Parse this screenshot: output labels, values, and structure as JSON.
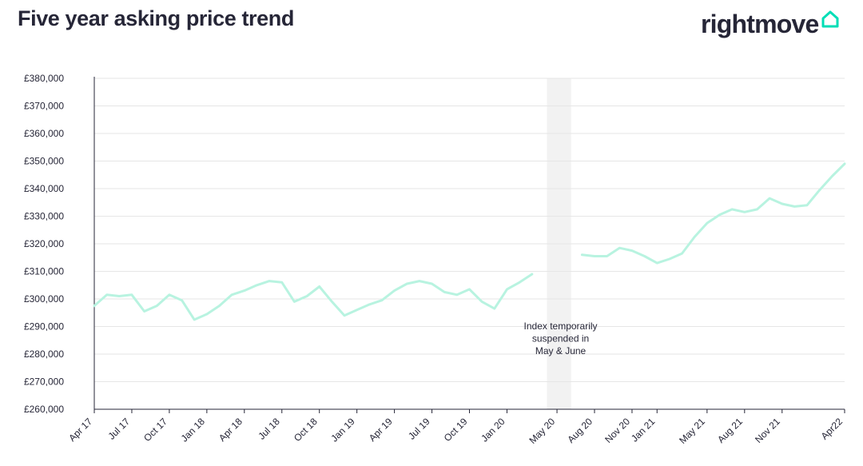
{
  "header": {
    "title": "Five year asking price trend",
    "brand": "rightmove"
  },
  "colors": {
    "line": "#b8f3e0",
    "brand_accent": "#00deb6",
    "gap_band": "#f2f2f2",
    "grid": "#e6e6e6",
    "text": "#262637"
  },
  "icons": {
    "brand": "house-outline-icon"
  },
  "chart_data": {
    "type": "line",
    "title": "Five year asking price trend",
    "xlabel": "",
    "ylabel": "",
    "ylim": [
      260000,
      380000
    ],
    "yticks": [
      260000,
      270000,
      280000,
      290000,
      300000,
      310000,
      320000,
      330000,
      340000,
      350000,
      360000,
      370000,
      380000
    ],
    "ytick_labels": [
      "£260,000",
      "£270,000",
      "£280,000",
      "£290,000",
      "£300,000",
      "£310,000",
      "£320,000",
      "£330,000",
      "£340,000",
      "£350,000",
      "£360,000",
      "£370,000",
      "£380,000"
    ],
    "x_categories": [
      "Apr 17",
      "May 17",
      "Jun 17",
      "Jul 17",
      "Aug 17",
      "Sep 17",
      "Oct 17",
      "Nov 17",
      "Dec 17",
      "Jan 18",
      "Feb 18",
      "Mar 18",
      "Apr 18",
      "May 18",
      "Jun 18",
      "Jul 18",
      "Aug 18",
      "Sep 18",
      "Oct 18",
      "Nov 18",
      "Dec 18",
      "Jan 19",
      "Feb 19",
      "Mar 19",
      "Apr 19",
      "May 19",
      "Jun 19",
      "Jul 19",
      "Aug 19",
      "Sep 19",
      "Oct 19",
      "Nov 19",
      "Dec 19",
      "Jan 20",
      "Feb 20",
      "Mar 20",
      "Apr 20",
      "May 20",
      "Jun 20",
      "Jul 20",
      "Aug 20",
      "Sep 20",
      "Oct 20",
      "Nov 20",
      "Dec 20",
      "Jan 21",
      "Feb 21",
      "Mar 21",
      "Apr 21",
      "May 21",
      "Jun 21",
      "Jul 21",
      "Aug 21",
      "Sep 21",
      "Oct 21",
      "Nov 21",
      "Dec 21",
      "Jan 22",
      "Feb 22",
      "Mar 22",
      "Apr 22"
    ],
    "x_tick_labels": [
      "Apr 17",
      "Jul 17",
      "Oct 17",
      "Jan 18",
      "Apr 18",
      "Jul 18",
      "Oct 18",
      "Jan 19",
      "Apr 19",
      "Jul 19",
      "Oct 19",
      "Jan 20",
      "May 20",
      "Aug 20",
      "Nov 20",
      "Jan 21",
      "May 21",
      "Aug 21",
      "Nov 21",
      "Apr22"
    ],
    "series": [
      {
        "name": "",
        "values": [
          297500,
          301500,
          301000,
          301500,
          295500,
          297500,
          301500,
          299500,
          292500,
          294500,
          297500,
          301500,
          303000,
          305000,
          306500,
          306000,
          299000,
          301000,
          304500,
          299000,
          294000,
          296000,
          298000,
          299500,
          303000,
          305500,
          306500,
          305500,
          302500,
          301500,
          303500,
          299000,
          296500,
          303500,
          306000,
          309000,
          null,
          null,
          null,
          316000,
          315500,
          315500,
          318500,
          317500,
          315500,
          313000,
          314500,
          316500,
          322500,
          327500,
          330500,
          332500,
          331500,
          332500,
          336500,
          334500,
          333500,
          334000,
          339500,
          344500,
          349000
        ]
      }
    ],
    "annotations": [
      {
        "label": "Index temporarily suspended in May & June",
        "lines": [
          "Index temporarily",
          "suspended in",
          "May & June"
        ],
        "span": [
          "Apr 20",
          "Jun 20"
        ]
      }
    ],
    "grid": true,
    "legend": "none"
  }
}
